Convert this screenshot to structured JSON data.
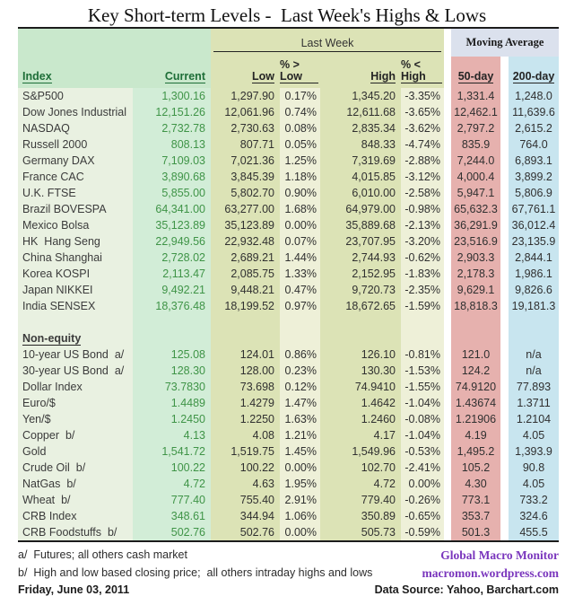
{
  "title": "Key Short-term Levels -  Last Week's Highs & Lows",
  "header": {
    "group_last_week": "Last Week",
    "group_moving_average": "Moving Average",
    "columns": {
      "index": "Index",
      "current": "Current",
      "low": "Low",
      "pct_above_low": "% > Low",
      "high": "High",
      "pct_below_high": "% < High",
      "ma50": "50-day",
      "ma200": "200-day"
    }
  },
  "sections": [
    {
      "label": null,
      "rows": [
        {
          "name": "S&P500",
          "current": "1,300.16",
          "low": "1,297.90",
          "pct_above_low": "0.17%",
          "high": "1,345.20",
          "pct_below_high": "-3.35%",
          "ma50": "1,331.4",
          "ma200": "1,248.0"
        },
        {
          "name": "Dow Jones Industrial",
          "current": "12,151.26",
          "low": "12,061.96",
          "pct_above_low": "0.74%",
          "high": "12,611.68",
          "pct_below_high": "-3.65%",
          "ma50": "12,462.1",
          "ma200": "11,639.6"
        },
        {
          "name": "NASDAQ",
          "current": "2,732.78",
          "low": "2,730.63",
          "pct_above_low": "0.08%",
          "high": "2,835.34",
          "pct_below_high": "-3.62%",
          "ma50": "2,797.2",
          "ma200": "2,615.2"
        },
        {
          "name": "Russell 2000",
          "current": "808.13",
          "low": "807.71",
          "pct_above_low": "0.05%",
          "high": "848.33",
          "pct_below_high": "-4.74%",
          "ma50": "835.9",
          "ma200": "764.0"
        },
        {
          "name": "Germany DAX",
          "current": "7,109.03",
          "low": "7,021.36",
          "pct_above_low": "1.25%",
          "high": "7,319.69",
          "pct_below_high": "-2.88%",
          "ma50": "7,244.0",
          "ma200": "6,893.1"
        },
        {
          "name": "France CAC",
          "current": "3,890.68",
          "low": "3,845.39",
          "pct_above_low": "1.18%",
          "high": "4,015.85",
          "pct_below_high": "-3.12%",
          "ma50": "4,000.4",
          "ma200": "3,899.2"
        },
        {
          "name": "U.K. FTSE",
          "current": "5,855.00",
          "low": "5,802.70",
          "pct_above_low": "0.90%",
          "high": "6,010.00",
          "pct_below_high": "-2.58%",
          "ma50": "5,947.1",
          "ma200": "5,806.9"
        },
        {
          "name": "Brazil BOVESPA",
          "current": "64,341.00",
          "low": "63,277.00",
          "pct_above_low": "1.68%",
          "high": "64,979.00",
          "pct_below_high": "-0.98%",
          "ma50": "65,632.3",
          "ma200": "67,761.1"
        },
        {
          "name": "Mexico Bolsa",
          "current": "35,123.89",
          "low": "35,123.89",
          "pct_above_low": "0.00%",
          "high": "35,889.68",
          "pct_below_high": "-2.13%",
          "ma50": "36,291.9",
          "ma200": "36,012.4"
        },
        {
          "name": "HK  Hang Seng",
          "current": "22,949.56",
          "low": "22,932.48",
          "pct_above_low": "0.07%",
          "high": "23,707.95",
          "pct_below_high": "-3.20%",
          "ma50": "23,516.9",
          "ma200": "23,135.9"
        },
        {
          "name": "China Shanghai",
          "current": "2,728.02",
          "low": "2,689.21",
          "pct_above_low": "1.44%",
          "high": "2,744.93",
          "pct_below_high": "-0.62%",
          "ma50": "2,903.3",
          "ma200": "2,844.1"
        },
        {
          "name": "Korea KOSPI",
          "current": "2,113.47",
          "low": "2,085.75",
          "pct_above_low": "1.33%",
          "high": "2,152.95",
          "pct_below_high": "-1.83%",
          "ma50": "2,178.3",
          "ma200": "1,986.1"
        },
        {
          "name": "Japan NIKKEI",
          "current": "9,492.21",
          "low": "9,448.21",
          "pct_above_low": "0.47%",
          "high": "9,720.73",
          "pct_below_high": "-2.35%",
          "ma50": "9,629.1",
          "ma200": "9,826.6"
        },
        {
          "name": "India SENSEX",
          "current": "18,376.48",
          "low": "18,199.52",
          "pct_above_low": "0.97%",
          "high": "18,672.65",
          "pct_below_high": "-1.59%",
          "ma50": "18,818.3",
          "ma200": "19,181.3"
        }
      ]
    },
    {
      "label": "Non-equity",
      "rows": [
        {
          "name": "10-year US Bond  a/",
          "current": "125.08",
          "low": "124.01",
          "pct_above_low": "0.86%",
          "high": "126.10",
          "pct_below_high": "-0.81%",
          "ma50": "121.0",
          "ma200": "n/a"
        },
        {
          "name": "30-year US Bond  a/",
          "current": "128.30",
          "low": "128.00",
          "pct_above_low": "0.23%",
          "high": "130.30",
          "pct_below_high": "-1.53%",
          "ma50": "124.2",
          "ma200": "n/a"
        },
        {
          "name": "Dollar Index",
          "current": "73.7830",
          "low": "73.698",
          "pct_above_low": "0.12%",
          "high": "74.9410",
          "pct_below_high": "-1.55%",
          "ma50": "74.9120",
          "ma200": "77.893"
        },
        {
          "name": "Euro/$",
          "current": "1.4489",
          "low": "1.4279",
          "pct_above_low": "1.47%",
          "high": "1.4642",
          "pct_below_high": "-1.04%",
          "ma50": "1.43674",
          "ma200": "1.3711"
        },
        {
          "name": "Yen/$",
          "current": "1.2450",
          "low": "1.2250",
          "pct_above_low": "1.63%",
          "high": "1.2460",
          "pct_below_high": "-0.08%",
          "ma50": "1.21906",
          "ma200": "1.2104"
        },
        {
          "name": "Copper  b/",
          "current": "4.13",
          "low": "4.08",
          "pct_above_low": "1.21%",
          "high": "4.17",
          "pct_below_high": "-1.04%",
          "ma50": "4.19",
          "ma200": "4.05"
        },
        {
          "name": "Gold",
          "current": "1,541.72",
          "low": "1,519.75",
          "pct_above_low": "1.45%",
          "high": "1,549.96",
          "pct_below_high": "-0.53%",
          "ma50": "1,495.2",
          "ma200": "1,393.9"
        },
        {
          "name": "Crude Oil  b/",
          "current": "100.22",
          "low": "100.22",
          "pct_above_low": "0.00%",
          "high": "102.70",
          "pct_below_high": "-2.41%",
          "ma50": "105.2",
          "ma200": "90.8"
        },
        {
          "name": "NatGas  b/",
          "current": "4.72",
          "low": "4.63",
          "pct_above_low": "1.95%",
          "high": "4.72",
          "pct_below_high": "0.00%",
          "ma50": "4.30",
          "ma200": "4.05"
        },
        {
          "name": "Wheat  b/",
          "current": "777.40",
          "low": "755.40",
          "pct_above_low": "2.91%",
          "high": "779.40",
          "pct_below_high": "-0.26%",
          "ma50": "773.1",
          "ma200": "733.2"
        },
        {
          "name": "CRB Index",
          "current": "348.61",
          "low": "344.94",
          "pct_above_low": "1.06%",
          "high": "350.89",
          "pct_below_high": "-0.65%",
          "ma50": "353.7",
          "ma200": "324.6"
        },
        {
          "name": "CRB Foodstuffs  b/",
          "current": "502.76",
          "low": "502.76",
          "pct_above_low": "0.00%",
          "high": "505.73",
          "pct_below_high": "-0.59%",
          "ma50": "501.3",
          "ma200": "455.5"
        }
      ]
    }
  ],
  "footer": {
    "note_a": "a/  Futures; all others cash market",
    "note_b": "b/  High and low based closing price;  all others intraday highs and lows",
    "date": "Friday, June 03, 2011",
    "brand": "Global Macro Monitor",
    "url": "macromon.wordpress.com",
    "data_source": "Data Source: Yahoo, Barchart.com"
  },
  "colors": {
    "mintHeader": "#c9e8cc",
    "indexCol": "#e9f1e1",
    "currentCol": "#d2edd7",
    "olive": "#dce3b6",
    "oliveLight": "#eef0d8",
    "lavender": "#dbe1ed",
    "pink": "#e6b1ae",
    "blue": "#c8e5ef",
    "greenText": "#3f9447",
    "headerGreen": "#1e6e38",
    "purple": "#7a36bd"
  }
}
